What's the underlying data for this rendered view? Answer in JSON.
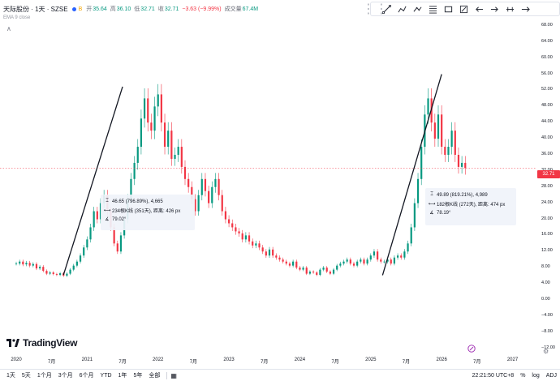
{
  "header": {
    "symbol": "天际股份 · 1天 · SZSE",
    "badge": "B",
    "open_label": "开",
    "open": "35.64",
    "high_label": "高",
    "high": "36.10",
    "low_label": "低",
    "low": "32.71",
    "close_label": "收",
    "close": "32.71",
    "change": "−3.63 (−9.99%)",
    "volume_label": "成交量",
    "volume": "67.4M",
    "indicator": "EMA 9 close"
  },
  "toolbar": {
    "tools": [
      "grip-icon",
      "trend-line-icon",
      "polyline-icon",
      "path-icon",
      "fib-icon",
      "rectangle-icon",
      "measure-icon",
      "arrow-left-icon",
      "arrow-right-icon",
      "brush-icon",
      "more-icon"
    ]
  },
  "price_scale": {
    "labels": [
      "68.00",
      "64.00",
      "60.00",
      "56.00",
      "52.00",
      "48.00",
      "44.00",
      "40.00",
      "36.00",
      "32.00",
      "28.00",
      "24.00",
      "20.00",
      "16.00",
      "12.00",
      "8.00",
      "4.00",
      "0.00",
      "−4.00",
      "−8.00",
      "−12.00"
    ],
    "last_price": "32.71"
  },
  "time_axis": {
    "labels": [
      "2020",
      "7月",
      "2021",
      "7月",
      "2022",
      "7月",
      "2023",
      "7月",
      "2024",
      "7月",
      "2025",
      "7月",
      "2026",
      "7月",
      "2027"
    ]
  },
  "measure_1": {
    "row1": "46.65 (796.89%), 4,665",
    "row2": "234根K线 (351天), 距离: 426 px",
    "row3": "79.02°"
  },
  "measure_2": {
    "row1": "49.89 (819.21%), 4,989",
    "row2": "182根K线 (272天), 距离: 474 px",
    "row3": "78.19°"
  },
  "logo": {
    "text": "TradingView"
  },
  "bottom": {
    "ranges": [
      "1天",
      "5天",
      "1个月",
      "3个月",
      "6个月",
      "YTD",
      "1年",
      "5年",
      "全部"
    ],
    "time": "22:21:50 UTC+8",
    "pct": "%",
    "log": "log",
    "auto": "ADJ"
  },
  "chart_data": {
    "type": "line",
    "title": "",
    "x_start": "2020-01",
    "ylim": [
      -12,
      70
    ],
    "series": [
      {
        "values": [
          9,
          9.5,
          8.8,
          9.2,
          8.5,
          8.9,
          7.8,
          8.2,
          7.2,
          6.5,
          6.8,
          6.4,
          6.2,
          6.6,
          6.0,
          6.5,
          7.5,
          8.5,
          9.5,
          11,
          13,
          15,
          18,
          22,
          20,
          24,
          26,
          22,
          18,
          14,
          12,
          16,
          20,
          25,
          30,
          34,
          38,
          45,
          50,
          44,
          42,
          48,
          51,
          44,
          38,
          42,
          35,
          36,
          38,
          33,
          30,
          28,
          25,
          22,
          26,
          30,
          27,
          24,
          28,
          30,
          26,
          22,
          20,
          19,
          18,
          17,
          16.5,
          15,
          16,
          14.5,
          13.5,
          14,
          13,
          12,
          11,
          12.5,
          11,
          10.5,
          10,
          9.5,
          9,
          8.5,
          9.5,
          8,
          7.5,
          8,
          6.5,
          7,
          6.8,
          6.2,
          7.5,
          8,
          7,
          6.5,
          7.5,
          8.5,
          9,
          9.5,
          10,
          9,
          8.5,
          9.5,
          10,
          9,
          10,
          11,
          12,
          10,
          9.5,
          9.5,
          10,
          9,
          10.5,
          11,
          10.5,
          12,
          14,
          18,
          24,
          30,
          38,
          46,
          50,
          44,
          40,
          46,
          38,
          36,
          38,
          42,
          36,
          33,
          34,
          32.71
        ]
      }
    ],
    "trendlines": [
      {
        "from": [
          "2020-09",
          6.2
        ],
        "to": [
          "2021-07",
          52.9
        ]
      },
      {
        "from": [
          "2025-03",
          6.1
        ],
        "to": [
          "2026-01",
          56.0
        ]
      }
    ]
  }
}
